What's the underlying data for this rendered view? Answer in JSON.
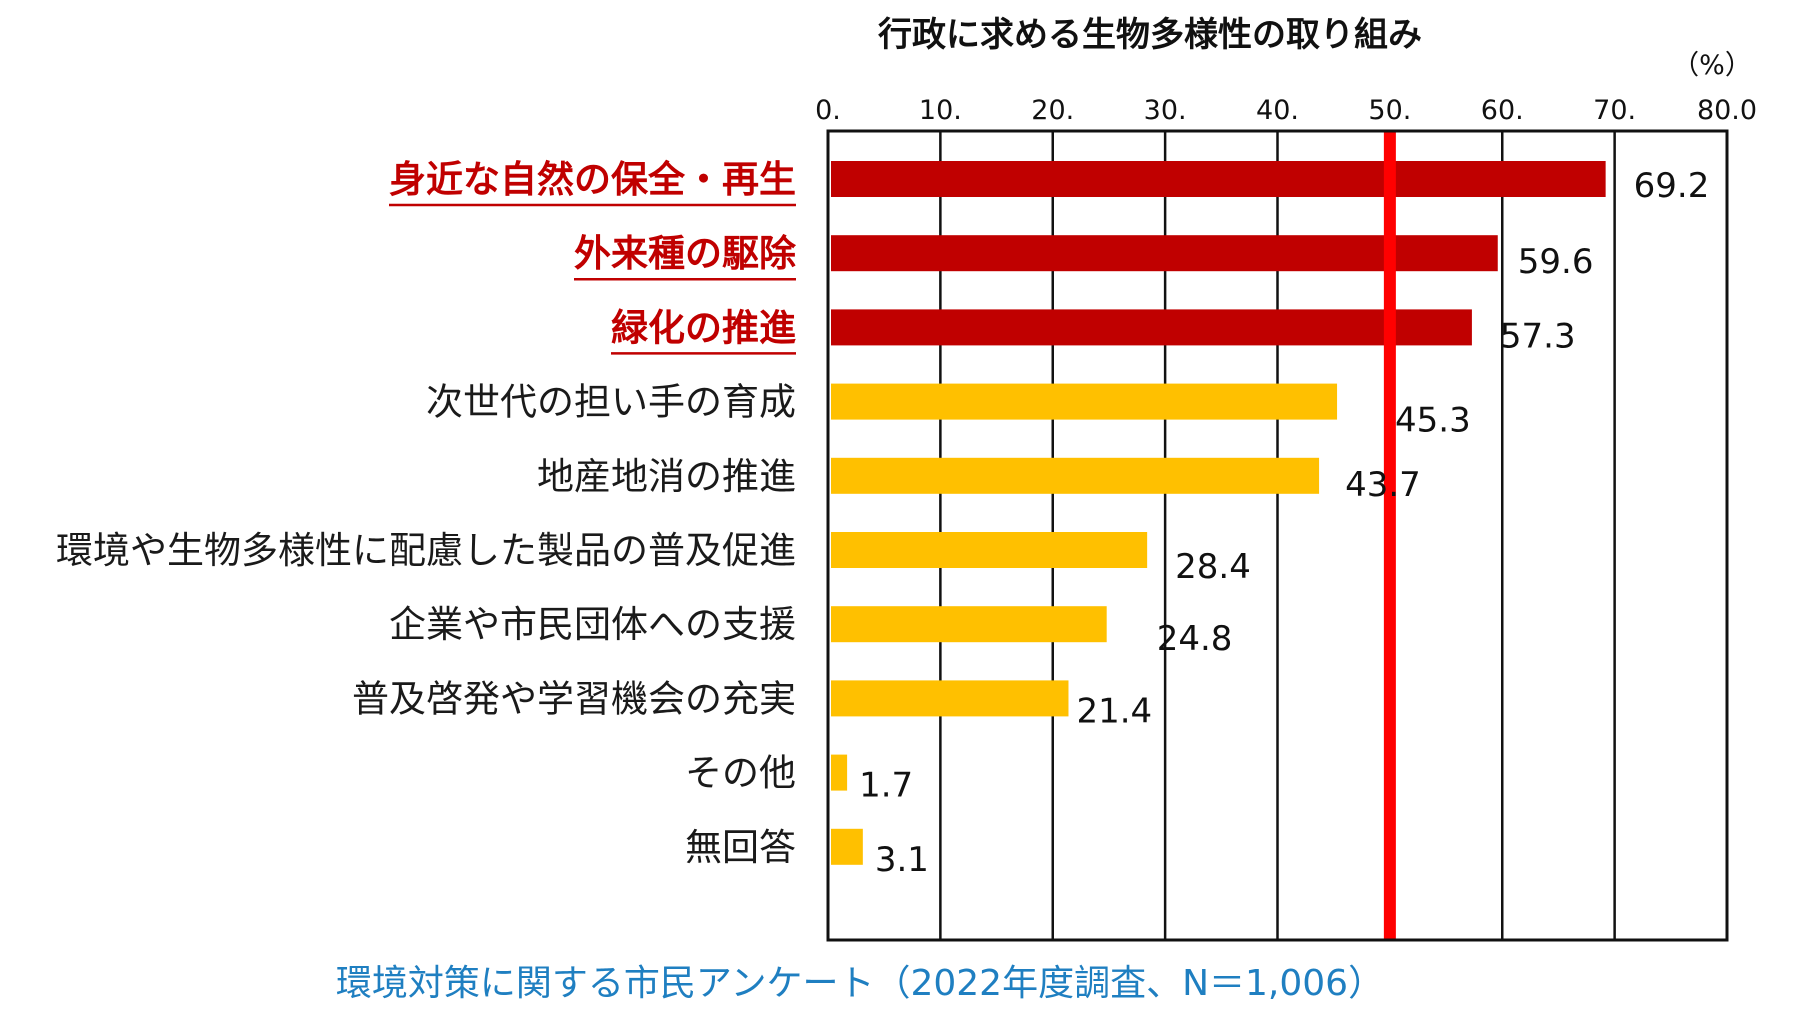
{
  "chart_data": {
    "type": "bar",
    "orientation": "horizontal",
    "title": "行政に求める生物多様性の取り組み",
    "unit": "（%）",
    "subtitle": "環境対策に関する市民アンケート（2022年度調査、N＝1,006）",
    "xlim": [
      0,
      80
    ],
    "x_ticks": [
      "0.",
      "10.",
      "20.",
      "30.",
      "40.",
      "50.",
      "60.",
      "70.",
      "80.0"
    ],
    "grid": true,
    "reference_line": {
      "value": 50,
      "color": "#ff0000"
    },
    "categories": [
      "身近な自然の保全・再生",
      "外来種の駆除",
      "緑化の推進",
      "次世代の担い手の育成",
      "地産地消の推進",
      "環境や生物多様性に配慮した製品の普及促進",
      "企業や市民団体への支援",
      "普及啓発や学習機会の充実",
      "その他",
      "無回答"
    ],
    "values": [
      69.2,
      59.6,
      57.3,
      45.3,
      43.7,
      28.4,
      24.8,
      21.4,
      1.7,
      3.1
    ],
    "value_labels": [
      "69.2",
      "59.6",
      "57.3",
      "45.3",
      "43.7",
      "28.4",
      "24.8",
      "21.4",
      "1.7",
      "3.1"
    ],
    "highlighted": [
      true,
      true,
      true,
      false,
      false,
      false,
      false,
      false,
      false,
      false
    ],
    "colors": {
      "highlight": "#c00000",
      "normal": "#ffc000",
      "highlight_text": "#c00000",
      "subtitle": "#1f7fc1"
    }
  }
}
